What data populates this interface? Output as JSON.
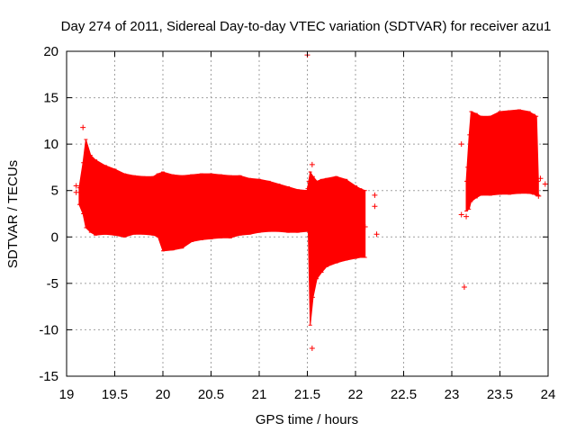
{
  "chart_data": {
    "type": "scatter",
    "title": "Day 274 of 2011, Sidereal Day-to-day VTEC variation (SDTVAR) for receiver azu1",
    "xlabel": "GPS time / hours",
    "ylabel": "SDTVAR / TECUs",
    "xlim": [
      19,
      24
    ],
    "ylim": [
      -15,
      20
    ],
    "xticks": [
      "19",
      "19.5",
      "20",
      "20.5",
      "21",
      "21.5",
      "22",
      "22.5",
      "23",
      "23.5",
      "24"
    ],
    "yticks": [
      "-15",
      "-10",
      "-5",
      "0",
      "5",
      "10",
      "15",
      "20"
    ],
    "grid": true,
    "series_color": "#ff0000",
    "band_segments": [
      {
        "x": [
          19.13,
          19.17,
          19.2,
          19.25,
          19.3,
          19.4,
          19.5,
          19.6,
          19.7,
          19.8,
          19.9,
          19.95,
          20.0,
          20.1,
          20.2,
          20.3,
          20.4,
          20.5,
          20.6,
          20.7,
          20.8,
          20.9,
          21.0,
          21.1,
          21.2,
          21.3,
          21.4,
          21.5
        ],
        "upper": [
          5.3,
          8.0,
          10.5,
          8.8,
          8.3,
          7.7,
          7.3,
          6.8,
          6.6,
          6.5,
          6.5,
          6.8,
          7.0,
          6.7,
          6.6,
          6.7,
          6.8,
          6.8,
          6.7,
          6.6,
          6.6,
          6.3,
          6.2,
          6.0,
          5.7,
          5.4,
          5.1,
          5.0
        ],
        "lower": [
          3.5,
          2.5,
          1.0,
          0.5,
          0.2,
          0.3,
          0.2,
          0.0,
          0.3,
          0.3,
          0.2,
          0.0,
          -1.5,
          -1.4,
          -1.2,
          -0.5,
          -0.3,
          -0.2,
          -0.1,
          -0.1,
          0.2,
          0.3,
          0.5,
          0.6,
          0.6,
          0.5,
          0.5,
          0.6
        ]
      },
      {
        "x": [
          21.5,
          21.53,
          21.56,
          21.6,
          21.65,
          21.7,
          21.8,
          21.9,
          22.0,
          22.05,
          22.1
        ],
        "upper": [
          5.2,
          7.0,
          6.5,
          6.0,
          6.2,
          6.3,
          6.5,
          6.2,
          5.5,
          5.2,
          5.0
        ],
        "lower": [
          5.0,
          -9.5,
          -6.5,
          -4.5,
          -3.8,
          -3.2,
          -2.8,
          -2.5,
          -2.3,
          -2.2,
          -2.2
        ]
      },
      {
        "x": [
          23.15,
          23.18,
          23.2,
          23.25,
          23.3,
          23.4,
          23.5,
          23.6,
          23.7,
          23.8,
          23.85,
          23.88,
          23.9
        ],
        "upper": [
          6.0,
          11.0,
          13.5,
          13.3,
          13.0,
          13.0,
          13.5,
          13.6,
          13.7,
          13.5,
          13.2,
          13.0,
          6.0
        ],
        "lower": [
          2.8,
          3.0,
          3.8,
          4.2,
          4.5,
          4.5,
          4.6,
          4.6,
          4.7,
          4.7,
          4.6,
          4.5,
          4.5
        ]
      }
    ],
    "points": [
      {
        "x": 19.1,
        "y": 5.5
      },
      {
        "x": 19.1,
        "y": 4.8
      },
      {
        "x": 19.17,
        "y": 11.8
      },
      {
        "x": 21.5,
        "y": 19.6
      },
      {
        "x": 21.52,
        "y": 6.0
      },
      {
        "x": 21.55,
        "y": 7.8
      },
      {
        "x": 21.55,
        "y": -12.0
      },
      {
        "x": 22.1,
        "y": 1.1
      },
      {
        "x": 22.2,
        "y": 4.5
      },
      {
        "x": 22.2,
        "y": 3.3
      },
      {
        "x": 22.22,
        "y": 0.3
      },
      {
        "x": 23.1,
        "y": 10.0
      },
      {
        "x": 23.1,
        "y": 2.4
      },
      {
        "x": 23.13,
        "y": -5.4
      },
      {
        "x": 23.17,
        "y": 7.5
      },
      {
        "x": 23.15,
        "y": 2.2
      },
      {
        "x": 23.97,
        "y": 5.7
      },
      {
        "x": 23.92,
        "y": 6.3
      },
      {
        "x": 23.9,
        "y": 4.4
      }
    ]
  }
}
